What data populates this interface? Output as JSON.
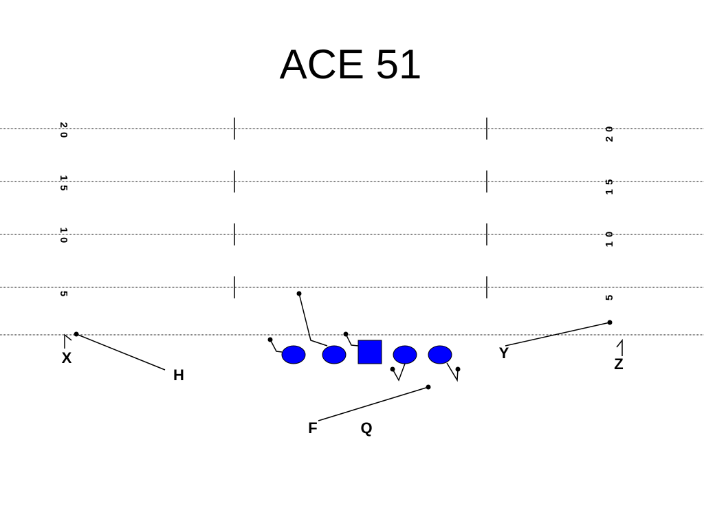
{
  "title": "ACE 51",
  "yard_markers": [
    "20",
    "15",
    "10",
    "5"
  ],
  "players": [
    {
      "label": "X"
    },
    {
      "label": "H"
    },
    {
      "label": "Y"
    },
    {
      "label": "Z"
    },
    {
      "label": "F"
    },
    {
      "label": "Q"
    }
  ]
}
